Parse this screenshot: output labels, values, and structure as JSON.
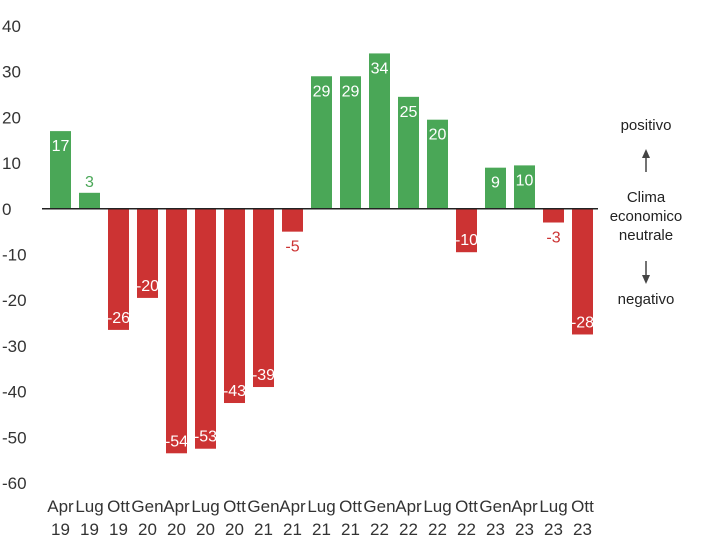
{
  "chart_data": {
    "type": "bar",
    "title": "",
    "xlabel": "",
    "ylabel": "",
    "ylim": [
      -60,
      40
    ],
    "yticks": [
      40,
      30,
      20,
      10,
      0,
      -10,
      -20,
      -30,
      -40,
      -50,
      -60
    ],
    "grid": false,
    "categories": [
      [
        "Apr",
        "19"
      ],
      [
        "Lug",
        "19"
      ],
      [
        "Ott",
        "19"
      ],
      [
        "Gen",
        "20"
      ],
      [
        "Apr",
        "20"
      ],
      [
        "Lug",
        "20"
      ],
      [
        "Ott",
        "20"
      ],
      [
        "Gen",
        "21"
      ],
      [
        "Apr",
        "21"
      ],
      [
        "Lug",
        "21"
      ],
      [
        "Ott",
        "21"
      ],
      [
        "Gen",
        "22"
      ],
      [
        "Apr",
        "22"
      ],
      [
        "Lug",
        "22"
      ],
      [
        "Ott",
        "22"
      ],
      [
        "Gen",
        "23"
      ],
      [
        "Apr",
        "23"
      ],
      [
        "Lug",
        "23"
      ],
      [
        "Ott",
        "23"
      ]
    ],
    "values": [
      17,
      3,
      -26,
      -20,
      -54,
      -53,
      -43,
      -39,
      -5,
      29,
      29,
      34,
      25,
      20,
      -10,
      9,
      10,
      -3,
      -28
    ],
    "bar_values": [
      17,
      3.5,
      -26.5,
      -19.5,
      -53.5,
      -52.5,
      -42.5,
      -39,
      -5,
      29,
      29,
      34,
      24.5,
      19.5,
      -9.5,
      9,
      9.5,
      -3,
      -27.5
    ],
    "colors": {
      "positive": "#4aa757",
      "negative": "#cc3333",
      "axis": "#222222"
    },
    "annotation": {
      "positive": "positivo",
      "neutral": [
        "Clima",
        "economico",
        "neutrale"
      ],
      "negative": "negativo"
    }
  }
}
